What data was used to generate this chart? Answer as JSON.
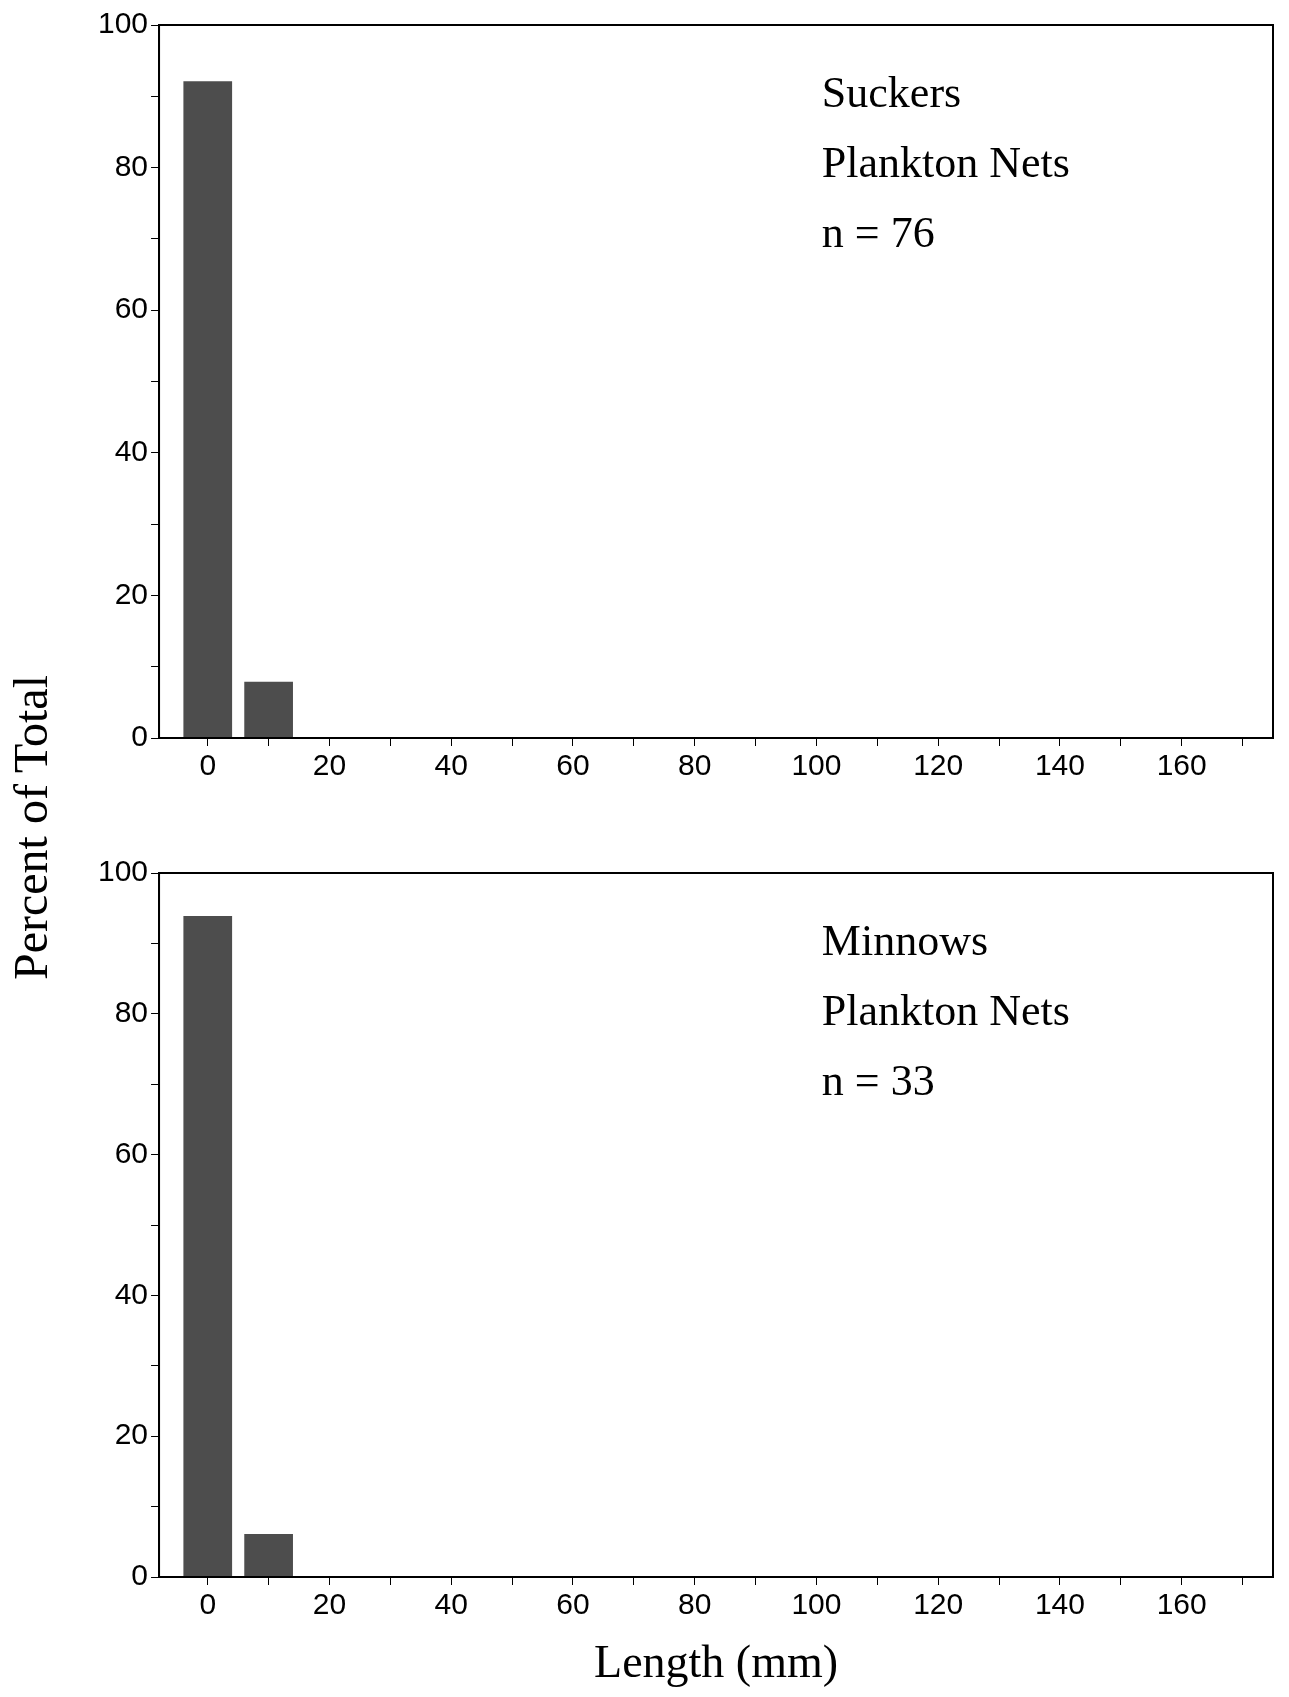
{
  "chart_data": [
    {
      "type": "histogram",
      "bins": [
        -5,
        5,
        15
      ],
      "values": [
        92.1,
        7.9
      ],
      "color": "#4d4d4d",
      "ylabel": "Percent of Total",
      "annotations": [
        "Suckers",
        "Plankton Nets",
        "n = 76"
      ],
      "xlim": [
        -8,
        175
      ],
      "xticks": [
        0,
        {
          "value": 10,
          "label": null
        },
        20,
        {
          "value": 30,
          "label": null
        },
        40,
        {
          "value": 50,
          "label": null
        },
        60,
        {
          "value": 70,
          "label": null
        },
        80,
        {
          "value": 90,
          "label": null
        },
        100,
        {
          "value": 110,
          "label": null
        },
        120,
        {
          "value": 130,
          "label": null
        },
        140,
        {
          "value": 150,
          "label": null
        },
        160,
        {
          "value": 170,
          "label": null
        }
      ],
      "ylim": [
        0,
        100
      ],
      "yticks": [
        0,
        {
          "value": 10,
          "label": null
        },
        20,
        {
          "value": 30,
          "label": null
        },
        40,
        {
          "value": 50,
          "label": null
        },
        60,
        {
          "value": 70,
          "label": null
        },
        80,
        {
          "value": 90,
          "label": null
        },
        100
      ],
      "grid": false,
      "legend": false
    },
    {
      "type": "histogram",
      "bins": [
        -5,
        5,
        15
      ],
      "values": [
        93.9,
        6.1
      ],
      "color": "#4d4d4d",
      "xlabel": "Length (mm)",
      "annotations": [
        "Minnows",
        "Plankton Nets",
        "n = 33"
      ],
      "xlim": [
        -8,
        175
      ],
      "xticks": [
        0,
        {
          "value": 10,
          "label": null
        },
        20,
        {
          "value": 30,
          "label": null
        },
        40,
        {
          "value": 50,
          "label": null
        },
        60,
        {
          "value": 70,
          "label": null
        },
        80,
        {
          "value": 90,
          "label": null
        },
        100,
        {
          "value": 110,
          "label": null
        },
        120,
        {
          "value": 130,
          "label": null
        },
        140,
        {
          "value": 150,
          "label": null
        },
        160,
        {
          "value": 170,
          "label": null
        }
      ],
      "ylim": [
        0,
        100
      ],
      "yticks": [
        0,
        {
          "value": 10,
          "label": null
        },
        20,
        {
          "value": 30,
          "label": null
        },
        40,
        {
          "value": 50,
          "label": null
        },
        60,
        {
          "value": 70,
          "label": null
        },
        80,
        {
          "value": 90,
          "label": null
        },
        100
      ],
      "grid": false,
      "legend": false
    }
  ]
}
